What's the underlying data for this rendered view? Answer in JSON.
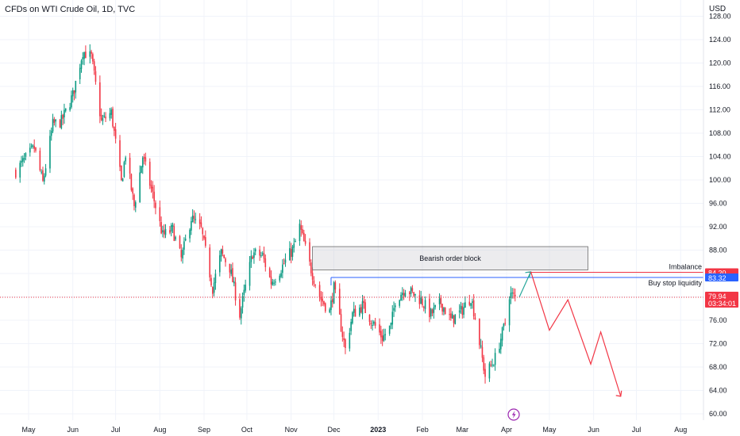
{
  "header": {
    "title": "CFDs on WTI Crude Oil, 1D, TVC",
    "currency": "USD"
  },
  "colors": {
    "up": "#089981",
    "down": "#f23645",
    "grid": "#f0f3fa",
    "price_line": "#f23645",
    "buy_stop": "#2962ff",
    "projection": "#f23645",
    "arrow_up": "#26a69a"
  },
  "chart_data": {
    "type": "candlestick",
    "title": "CFDs on WTI Crude Oil, 1D, TVC",
    "ylabel": "USD",
    "ylim": [
      59,
      129
    ],
    "yticks": [
      60,
      64,
      68,
      72,
      76,
      80,
      84,
      88,
      92,
      96,
      100,
      104,
      108,
      112,
      116,
      120,
      124,
      128
    ],
    "ytick_labels": [
      "60.00",
      "64.00",
      "68.00",
      "72.00",
      "76.00",
      "80.00",
      "84.00",
      "88.00",
      "92.00",
      "96.00",
      "100.00",
      "104.00",
      "108.00",
      "112.00",
      "116.00",
      "120.00",
      "124.00",
      "128.00"
    ],
    "xticks": [
      {
        "label": "May",
        "date": "2022-05-01",
        "bold": false
      },
      {
        "label": "Jun",
        "date": "2022-06-01",
        "bold": false
      },
      {
        "label": "Jul",
        "date": "2022-07-01",
        "bold": false
      },
      {
        "label": "Aug",
        "date": "2022-08-01",
        "bold": false
      },
      {
        "label": "Sep",
        "date": "2022-09-01",
        "bold": false
      },
      {
        "label": "Oct",
        "date": "2022-10-01",
        "bold": false
      },
      {
        "label": "Nov",
        "date": "2022-11-01",
        "bold": false
      },
      {
        "label": "Dec",
        "date": "2022-12-01",
        "bold": false
      },
      {
        "label": "2023",
        "date": "2023-01-01",
        "bold": true
      },
      {
        "label": "Feb",
        "date": "2023-02-01",
        "bold": false
      },
      {
        "label": "Mar",
        "date": "2023-03-01",
        "bold": false
      },
      {
        "label": "Apr",
        "date": "2023-04-01",
        "bold": false
      },
      {
        "label": "May",
        "date": "2023-05-01",
        "bold": false
      },
      {
        "label": "Jun",
        "date": "2023-06-01",
        "bold": false
      },
      {
        "label": "Jul",
        "date": "2023-07-01",
        "bold": false
      },
      {
        "label": "Aug",
        "date": "2023-08-01",
        "bold": false
      }
    ],
    "price_path": [
      [
        "2022-04-22",
        101.5
      ],
      [
        "2022-05-05",
        105.5
      ],
      [
        "2022-05-11",
        99.5
      ],
      [
        "2022-05-18",
        109.5
      ],
      [
        "2022-05-24",
        110.0
      ],
      [
        "2022-06-01",
        114.5
      ],
      [
        "2022-06-08",
        122.0
      ],
      [
        "2022-06-14",
        121.0
      ],
      [
        "2022-06-21",
        110.0
      ],
      [
        "2022-06-28",
        111.5
      ],
      [
        "2022-07-05",
        99.5
      ],
      [
        "2022-07-08",
        104.5
      ],
      [
        "2022-07-14",
        95.5
      ],
      [
        "2022-07-20",
        104.0
      ],
      [
        "2022-07-27",
        97.5
      ],
      [
        "2022-08-03",
        90.5
      ],
      [
        "2022-08-10",
        91.5
      ],
      [
        "2022-08-16",
        86.5
      ],
      [
        "2022-08-23",
        93.5
      ],
      [
        "2022-08-30",
        91.5
      ],
      [
        "2022-09-07",
        81.5
      ],
      [
        "2022-09-13",
        87.5
      ],
      [
        "2022-09-19",
        85.0
      ],
      [
        "2022-09-26",
        77.0
      ],
      [
        "2022-10-05",
        87.5
      ],
      [
        "2022-10-12",
        87.0
      ],
      [
        "2022-10-18",
        82.5
      ],
      [
        "2022-10-24",
        84.5
      ],
      [
        "2022-11-03",
        88.5
      ],
      [
        "2022-11-07",
        92.0
      ],
      [
        "2022-11-14",
        85.5
      ],
      [
        "2022-11-21",
        80.0
      ],
      [
        "2022-11-28",
        77.5
      ],
      [
        "2022-12-01",
        81.5
      ],
      [
        "2022-12-09",
        71.0
      ],
      [
        "2022-12-14",
        77.0
      ],
      [
        "2022-12-21",
        78.5
      ],
      [
        "2023-01-04",
        73.0
      ],
      [
        "2023-01-10",
        75.0
      ],
      [
        "2023-01-13",
        79.5
      ],
      [
        "2023-01-20",
        81.5
      ],
      [
        "2023-01-31",
        79.5
      ],
      [
        "2023-02-07",
        77.0
      ],
      [
        "2023-02-14",
        79.0
      ],
      [
        "2023-02-21",
        76.0
      ],
      [
        "2023-02-28",
        77.5
      ],
      [
        "2023-03-07",
        80.0
      ],
      [
        "2023-03-10",
        76.5
      ],
      [
        "2023-03-17",
        66.5
      ],
      [
        "2023-03-24",
        69.5
      ],
      [
        "2023-03-31",
        75.5
      ],
      [
        "2023-04-03",
        80.5
      ],
      [
        "2023-04-07",
        79.9
      ]
    ],
    "last_price": 79.94,
    "last_price_label": "79.94",
    "countdown": "03:34:01",
    "annotations": {
      "order_block": {
        "label": "Bearish order block",
        "x_start": "2022-11-16",
        "x_end": "2023-05-28",
        "y_low": 84.6,
        "y_high": 88.6
      },
      "imbalance": {
        "label": "Imbalance",
        "value": 84.2,
        "value_label": "84.20",
        "x_start": "2023-04-16"
      },
      "buy_stop_liquidity": {
        "label": "Buy stop liquidity",
        "value": 83.32,
        "value_label": "83.32",
        "x_start": "2022-11-29"
      },
      "projection_up": [
        [
          "2023-04-10",
          80.0
        ],
        [
          "2023-04-18",
          84.3
        ]
      ],
      "projection_down": [
        [
          "2023-04-18",
          84.3
        ],
        [
          "2023-05-01",
          74.3
        ],
        [
          "2023-05-14",
          79.5
        ],
        [
          "2023-05-30",
          68.5
        ],
        [
          "2023-06-06",
          74.0
        ],
        [
          "2023-06-20",
          63.0
        ]
      ]
    },
    "grid": true
  }
}
